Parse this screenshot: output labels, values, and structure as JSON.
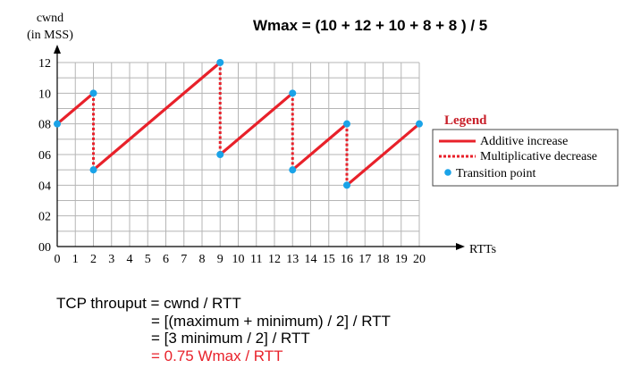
{
  "header": {
    "wmax_formula": "Wmax = (10 + 12 + 10 + 8 + 8 ) / 5"
  },
  "chart_data": {
    "type": "line",
    "ylabel_line1": "cwnd",
    "ylabel_line2": "(in MSS)",
    "xlabel": "RTTs",
    "xlim": [
      0,
      20
    ],
    "ylim": [
      0,
      12
    ],
    "x_ticks": [
      "0",
      "1",
      "2",
      "3",
      "4",
      "5",
      "6",
      "7",
      "8",
      "9",
      "10",
      "11",
      "12",
      "13",
      "14",
      "15",
      "16",
      "17",
      "18",
      "19",
      "20"
    ],
    "y_ticks": [
      {
        "value": 0,
        "label": "00"
      },
      {
        "value": 2,
        "label": "02"
      },
      {
        "value": 4,
        "label": "04"
      },
      {
        "value": 6,
        "label": "06"
      },
      {
        "value": 8,
        "label": "08"
      },
      {
        "value": 10,
        "label": "10"
      },
      {
        "value": 12,
        "label": "12"
      }
    ],
    "grid": true,
    "additive_increase": [
      [
        [
          0,
          8
        ],
        [
          2,
          10
        ]
      ],
      [
        [
          2,
          5
        ],
        [
          9,
          12
        ]
      ],
      [
        [
          9,
          6
        ],
        [
          13,
          10
        ]
      ],
      [
        [
          13,
          5
        ],
        [
          16,
          8
        ]
      ],
      [
        [
          16,
          4
        ],
        [
          20,
          8
        ]
      ]
    ],
    "multiplicative_decrease": [
      [
        [
          2,
          10
        ],
        [
          2,
          5
        ]
      ],
      [
        [
          9,
          12
        ],
        [
          9,
          6
        ]
      ],
      [
        [
          13,
          10
        ],
        [
          13,
          5
        ]
      ],
      [
        [
          16,
          8
        ],
        [
          16,
          4
        ]
      ]
    ],
    "transition_points": [
      [
        0,
        8
      ],
      [
        2,
        10
      ],
      [
        2,
        5
      ],
      [
        9,
        12
      ],
      [
        9,
        6
      ],
      [
        13,
        10
      ],
      [
        13,
        5
      ],
      [
        16,
        8
      ],
      [
        16,
        4
      ],
      [
        20,
        8
      ]
    ],
    "legend": {
      "title": "Legend",
      "placement": "right",
      "entries": [
        "Additive increase",
        "Multiplicative decrease",
        "Transition point"
      ]
    },
    "colors": {
      "line": "#e8212a",
      "point": "#1aa3e8",
      "legend_title": "#c8202a",
      "grid": "#b5b5b5"
    }
  },
  "formula": {
    "line1": "TCP throuput = cwnd / RTT",
    "line2": "= [(maximum + minimum) / 2] / RTT",
    "line3": "= [3 minimum / 2] / RTT",
    "line4": "= 0.75 Wmax / RTT"
  }
}
